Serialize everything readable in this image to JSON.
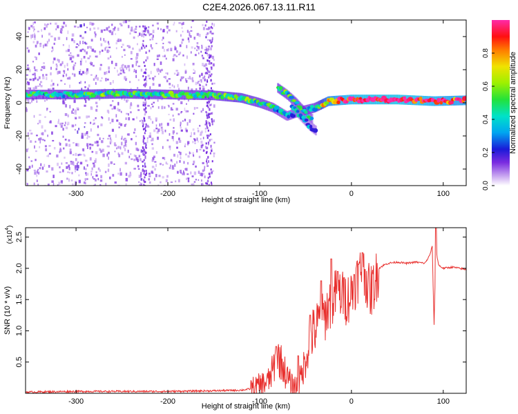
{
  "figure_title": "C2E4.2026.067.13.11.R11",
  "colors": {
    "snr_line": "#e8302e",
    "ridge_high": "#cc0000",
    "noise": "#b57bee",
    "axis": "#000000"
  },
  "chart_data": [
    {
      "type": "heatmap",
      "title": "",
      "xlabel": "Height of straight line (km)",
      "ylabel": "Frequency (Hz)",
      "xlim": [
        -355,
        125
      ],
      "ylim": [
        -50,
        50
      ],
      "xticks": [
        -300,
        -200,
        -100,
        0,
        100
      ],
      "xtick_labels": [
        "-300",
        "-200",
        "-100",
        "0",
        "100"
      ],
      "yticks": [
        -40,
        -20,
        0,
        20,
        40
      ],
      "ytick_labels": [
        "-40",
        "-20",
        "0",
        "20",
        "40"
      ],
      "colorbar": {
        "label": "Normalized spectral amplitude",
        "range": [
          0,
          1
        ],
        "ticks": [
          0,
          0.2,
          0.4,
          0.6,
          0.8
        ],
        "tick_labels": [
          "0.0",
          "0.2",
          "0.4",
          "0.6",
          "0.8"
        ]
      },
      "ridges": [
        {
          "name": "main",
          "points": [
            [
              -355,
              5
            ],
            [
              -300,
              5
            ],
            [
              -250,
              5.5
            ],
            [
              -200,
              5
            ],
            [
              -150,
              4.5
            ],
            [
              -120,
              3
            ],
            [
              -100,
              0
            ],
            [
              -85,
              -3
            ],
            [
              -70,
              -8
            ],
            [
              -55,
              -5
            ],
            [
              -40,
              -3
            ],
            [
              -25,
              1
            ],
            [
              0,
              2
            ],
            [
              50,
              2
            ],
            [
              90,
              1
            ],
            [
              125,
              1.5
            ]
          ],
          "amplitude": [
            0.4,
            0.45,
            0.5,
            0.45,
            0.45,
            0.5,
            0.45,
            0.4,
            0.35,
            0.4,
            0.45,
            0.8,
            0.95,
            1.0,
            0.9,
            0.85
          ]
        },
        {
          "name": "branch-1",
          "points": [
            [
              -80,
              9
            ],
            [
              -70,
              5
            ],
            [
              -60,
              0
            ],
            [
              -50,
              -6
            ],
            [
              -42,
              -10
            ]
          ],
          "amplitude": [
            0.45,
            0.45,
            0.45,
            0.4,
            0.35
          ]
        },
        {
          "name": "branch-2",
          "points": [
            [
              -65,
              -2
            ],
            [
              -55,
              -8
            ],
            [
              -45,
              -14
            ],
            [
              -38,
              -17
            ]
          ],
          "amplitude": [
            0.3,
            0.3,
            0.25,
            0.25
          ]
        }
      ]
    },
    {
      "type": "line",
      "title": "",
      "xlabel": "Height of straight line (km)",
      "ylabel": "SNR (10 * v/v)",
      "y_multiplier": "(x10",
      "y_multiplier_exp": "4",
      "y_multiplier_close": ")",
      "xlim": [
        -355,
        125
      ],
      "ylim": [
        0,
        2.65
      ],
      "xticks": [
        -300,
        -200,
        -100,
        0,
        100
      ],
      "xtick_labels": [
        "-300",
        "-200",
        "-100",
        "0",
        "100"
      ],
      "yticks": [
        0.5,
        1.0,
        1.5,
        2.0,
        2.5
      ],
      "ytick_labels": [
        "0.5",
        "1.0",
        "1.5",
        "2.0",
        "2.5"
      ],
      "series": [
        {
          "name": "SNR",
          "x": [
            -355,
            -300,
            -250,
            -200,
            -150,
            -120,
            -105,
            -100,
            -90,
            -85,
            -80,
            -75,
            -70,
            -65,
            -60,
            -55,
            -50,
            -45,
            -40,
            -35,
            -30,
            -25,
            -20,
            -15,
            -10,
            -5,
            0,
            5,
            10,
            15,
            20,
            25,
            30,
            35,
            40,
            50,
            60,
            70,
            80,
            85,
            88,
            90,
            92,
            95,
            100,
            110,
            125
          ],
          "y": [
            0.02,
            0.03,
            0.03,
            0.03,
            0.04,
            0.05,
            0.08,
            0.12,
            0.2,
            0.4,
            0.6,
            0.45,
            0.25,
            0.12,
            0.1,
            0.25,
            0.55,
            0.9,
            1.0,
            1.15,
            1.2,
            1.4,
            1.5,
            1.65,
            1.55,
            1.5,
            1.6,
            1.8,
            1.95,
            1.9,
            1.6,
            1.75,
            2.0,
            2.05,
            2.08,
            2.1,
            2.08,
            2.1,
            2.08,
            2.2,
            2.35,
            1.1,
            2.3,
            2.05,
            2.0,
            2.02,
            1.98
          ],
          "spikes": [
            {
              "x": -82,
              "y": 0.75
            },
            {
              "x": -58,
              "y": 0.6
            },
            {
              "x": -45,
              "y": 1.25
            },
            {
              "x": -33,
              "y": 1.8
            },
            {
              "x": -22,
              "y": 2.15
            },
            {
              "x": -15,
              "y": 1.95
            },
            {
              "x": -8,
              "y": 1.85
            },
            {
              "x": 3,
              "y": 1.9
            },
            {
              "x": 12,
              "y": 2.25
            },
            {
              "x": 92,
              "y": 2.65
            }
          ]
        }
      ]
    }
  ]
}
